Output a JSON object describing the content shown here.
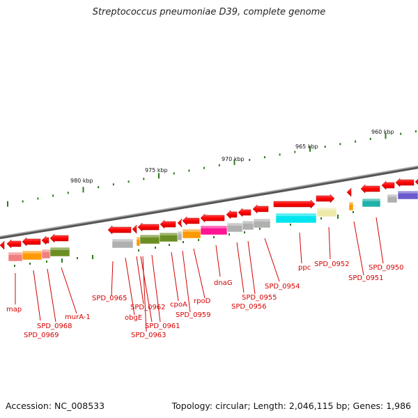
{
  "title": "Streptococcus pneumoniae D39, complete genome",
  "footer": {
    "accession": "Accession: NC_008533",
    "summary": "Topology: circular; Length: 2,046,115 bp; Genes: 1,986"
  },
  "ruler_labels": [
    "960 kbp",
    "965 kbp",
    "970 kbp",
    "975 kbp",
    "980 kbp"
  ],
  "gene_labels": [
    "map",
    "SPD_0968",
    "SPD_0969",
    "murA-1",
    "SPD_0965",
    "obgE",
    "SPD_0962",
    "SPD_0961",
    "SPD_0963",
    "cpoA",
    "SPD_0959",
    "rpoD",
    "dnaG",
    "SPD_0956",
    "SPD_0955",
    "SPD_0954",
    "ppc",
    "SPD_0952",
    "SPD_0951",
    "SPD_0950"
  ],
  "colors": {
    "gene_arrow": "#ff0000",
    "label": "#d40000",
    "backbone": "#888888",
    "ruler_tick": "#2a7a1a"
  }
}
